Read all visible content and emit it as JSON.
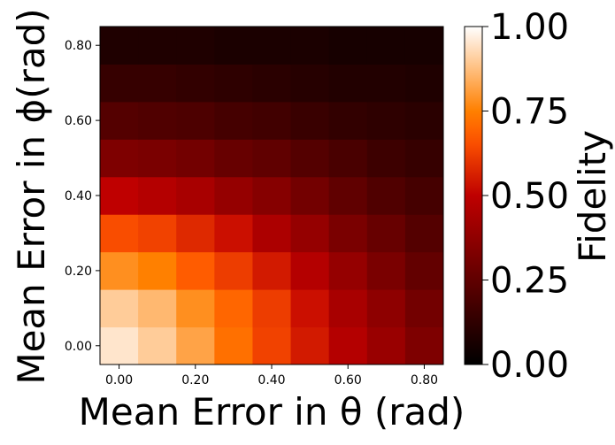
{
  "chart_data": {
    "type": "heatmap",
    "xlabel": "Mean Error in θ (rad)",
    "ylabel": "Mean Error in ϕ(rad)",
    "x": [
      0.0,
      0.1,
      0.2,
      0.3,
      0.4,
      0.5,
      0.6,
      0.7,
      0.8
    ],
    "y": [
      0.0,
      0.1,
      0.2,
      0.3,
      0.4,
      0.5,
      0.6,
      0.7,
      0.8
    ],
    "xticks": [
      "0.00",
      "0.20",
      "0.40",
      "0.60",
      "0.80"
    ],
    "yticks": [
      "0.00",
      "0.20",
      "0.40",
      "0.60",
      "0.80"
    ],
    "colormap": "gist_heat",
    "values": [
      [
        0.95,
        0.9,
        0.82,
        0.72,
        0.63,
        0.55,
        0.47,
        0.4,
        0.33
      ],
      [
        0.9,
        0.86,
        0.78,
        0.7,
        0.62,
        0.53,
        0.44,
        0.37,
        0.3
      ],
      [
        0.78,
        0.75,
        0.68,
        0.62,
        0.55,
        0.47,
        0.39,
        0.32,
        0.26
      ],
      [
        0.65,
        0.63,
        0.58,
        0.53,
        0.45,
        0.39,
        0.32,
        0.27,
        0.22
      ],
      [
        0.5,
        0.47,
        0.44,
        0.39,
        0.35,
        0.3,
        0.25,
        0.21,
        0.18
      ],
      [
        0.33,
        0.32,
        0.3,
        0.27,
        0.25,
        0.22,
        0.19,
        0.16,
        0.14
      ],
      [
        0.22,
        0.21,
        0.2,
        0.18,
        0.17,
        0.15,
        0.13,
        0.12,
        0.11
      ],
      [
        0.14,
        0.14,
        0.13,
        0.12,
        0.11,
        0.1,
        0.09,
        0.09,
        0.08
      ],
      [
        0.08,
        0.08,
        0.08,
        0.07,
        0.07,
        0.07,
        0.06,
        0.06,
        0.06
      ]
    ],
    "colorbar": {
      "label": "Fidelity",
      "range": [
        0.0,
        1.0
      ],
      "ticks": [
        "0.00",
        "0.25",
        "0.50",
        "0.75",
        "1.00"
      ]
    }
  }
}
